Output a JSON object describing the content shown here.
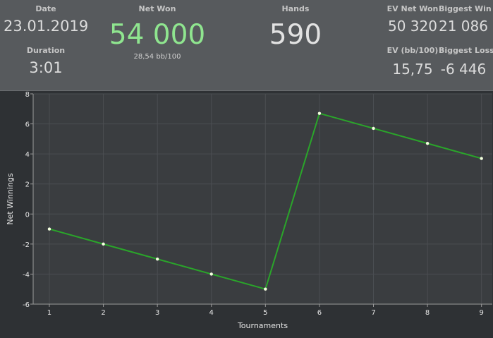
{
  "summary": {
    "date_label": "Date",
    "date_value": "23.01.2019",
    "duration_label": "Duration",
    "duration_value": "3:01",
    "net_won_label": "Net Won",
    "net_won_value": "54 000",
    "net_won_sub": "28,54 bb/100",
    "hands_label": "Hands",
    "hands_value": "590",
    "ev_net_won_label": "EV Net Won",
    "ev_net_won_value": "50 320",
    "biggest_win_label": "Biggest Win",
    "biggest_win_value": "21 086",
    "ev_bb_label": "EV (bb/100)",
    "ev_bb_value": "15,75",
    "biggest_loss_label": "Biggest Loss",
    "biggest_loss_value": "-6 446"
  },
  "colors": {
    "header_bg": "#575a5d",
    "chart_bg": "#2e3134",
    "plot_bg": "#3a3d40",
    "net_won_accent": "#8fe58f",
    "line": "#2aa52a",
    "point": "#f4ffe0"
  },
  "chart_data": {
    "type": "line",
    "x": [
      1,
      2,
      3,
      4,
      5,
      6,
      7,
      8,
      9
    ],
    "series": [
      {
        "values": [
          -1,
          -2,
          -3,
          -4,
          -5,
          6.7,
          5.7,
          4.7,
          3.7
        ]
      }
    ],
    "xlabel": "Tournaments",
    "ylabel": "Net Winnings",
    "xlim": [
      0.7,
      9.2
    ],
    "ylim": [
      -6,
      8
    ],
    "xticks": [
      1,
      2,
      3,
      4,
      5,
      6,
      7,
      8,
      9
    ],
    "yticks": [
      -6,
      -4,
      -2,
      0,
      2,
      4,
      6,
      8
    ],
    "grid": true
  }
}
